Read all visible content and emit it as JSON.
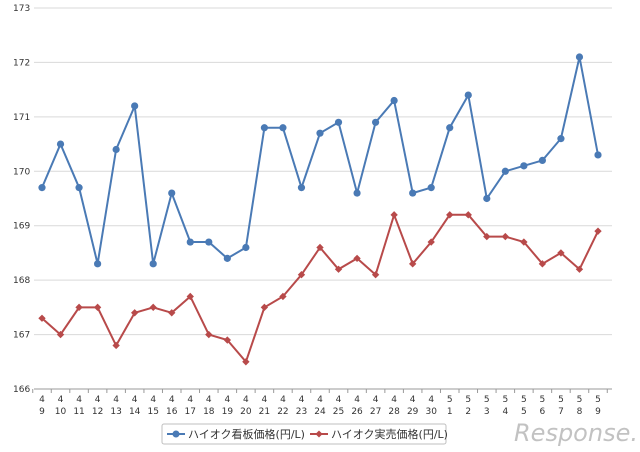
{
  "chart_data": {
    "type": "line",
    "title": "",
    "xlabel": "",
    "ylabel": "",
    "ylim": [
      166,
      173
    ],
    "yticks": [
      166,
      167,
      168,
      169,
      170,
      171,
      172,
      173
    ],
    "grid": true,
    "legend_position": "bottom",
    "categories": [
      {
        "month": "4",
        "day": "9"
      },
      {
        "month": "4",
        "day": "10"
      },
      {
        "month": "4",
        "day": "11"
      },
      {
        "month": "4",
        "day": "12"
      },
      {
        "month": "4",
        "day": "13"
      },
      {
        "month": "4",
        "day": "14"
      },
      {
        "month": "4",
        "day": "15"
      },
      {
        "month": "4",
        "day": "16"
      },
      {
        "month": "4",
        "day": "17"
      },
      {
        "month": "4",
        "day": "18"
      },
      {
        "month": "4",
        "day": "19"
      },
      {
        "month": "4",
        "day": "20"
      },
      {
        "month": "4",
        "day": "21"
      },
      {
        "month": "4",
        "day": "22"
      },
      {
        "month": "4",
        "day": "23"
      },
      {
        "month": "4",
        "day": "24"
      },
      {
        "month": "4",
        "day": "25"
      },
      {
        "month": "4",
        "day": "26"
      },
      {
        "month": "4",
        "day": "27"
      },
      {
        "month": "4",
        "day": "28"
      },
      {
        "month": "4",
        "day": "29"
      },
      {
        "month": "4",
        "day": "30"
      },
      {
        "month": "5",
        "day": "1"
      },
      {
        "month": "5",
        "day": "2"
      },
      {
        "month": "5",
        "day": "3"
      },
      {
        "month": "5",
        "day": "4"
      },
      {
        "month": "5",
        "day": "5"
      },
      {
        "month": "5",
        "day": "6"
      },
      {
        "month": "5",
        "day": "7"
      },
      {
        "month": "5",
        "day": "8"
      },
      {
        "month": "5",
        "day": "9"
      }
    ],
    "series": [
      {
        "name": "ハイオク看板価格(円/L)",
        "color": "#4a7ab5",
        "marker": "circle",
        "values": [
          169.7,
          170.5,
          169.7,
          168.3,
          170.4,
          171.2,
          168.3,
          169.6,
          168.7,
          168.7,
          168.4,
          168.6,
          170.8,
          170.8,
          169.7,
          170.7,
          170.9,
          169.6,
          170.9,
          171.3,
          169.6,
          169.7,
          170.8,
          171.4,
          169.5,
          170.0,
          170.1,
          170.2,
          170.6,
          172.1,
          170.3
        ]
      },
      {
        "name": "ハイオク実売価格(円/L)",
        "color": "#b84a4a",
        "marker": "diamond",
        "values": [
          167.3,
          167.0,
          167.5,
          167.5,
          166.8,
          167.4,
          167.5,
          167.4,
          167.7,
          167.0,
          166.9,
          166.5,
          167.5,
          167.7,
          168.1,
          168.6,
          168.2,
          168.4,
          168.1,
          169.2,
          168.3,
          168.7,
          169.2,
          169.2,
          168.8,
          168.8,
          168.7,
          168.3,
          168.5,
          168.2,
          168.9
        ]
      }
    ]
  },
  "watermark": {
    "text": "Response.",
    "color": "#c2c2c2"
  }
}
